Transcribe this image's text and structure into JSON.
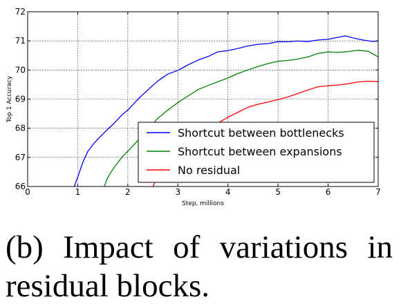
{
  "caption": "(b) Impact of variations in residual blocks.",
  "chart_data": {
    "type": "line",
    "xlabel": "Step, millions",
    "ylabel": "Top 1 Accuracy",
    "xlim": [
      0,
      7
    ],
    "ylim": [
      66,
      72
    ],
    "xticks": [
      0,
      1,
      2,
      3,
      4,
      5,
      6,
      7
    ],
    "yticks": [
      66,
      67,
      68,
      69,
      70,
      71,
      72
    ],
    "grid": true,
    "legend_position": "lower-right",
    "series": [
      {
        "name": "Shortcut between bottlenecks",
        "color": "#0000ff",
        "x": [
          0.93,
          1.0,
          1.1,
          1.2,
          1.3,
          1.4,
          1.5,
          1.6,
          1.7,
          1.8,
          1.9,
          2.0,
          2.2,
          2.4,
          2.6,
          2.8,
          3.0,
          3.2,
          3.4,
          3.6,
          3.8,
          4.0,
          4.2,
          4.4,
          4.6,
          4.8,
          5.0,
          5.2,
          5.4,
          5.6,
          5.8,
          6.0,
          6.2,
          6.35,
          6.5,
          6.7,
          6.9,
          7.0
        ],
        "y": [
          66.0,
          66.3,
          66.8,
          67.2,
          67.45,
          67.65,
          67.8,
          67.95,
          68.1,
          68.3,
          68.5,
          68.65,
          69.0,
          69.3,
          69.6,
          69.85,
          70.0,
          70.2,
          70.35,
          70.45,
          70.6,
          70.65,
          70.75,
          70.85,
          70.9,
          70.9,
          70.95,
          70.95,
          71.0,
          71.0,
          71.05,
          71.05,
          71.1,
          71.15,
          71.1,
          71.05,
          71.0,
          71.0
        ]
      },
      {
        "name": "Shortcut between expansions",
        "color": "#008000",
        "x": [
          1.53,
          1.6,
          1.7,
          1.8,
          1.9,
          2.0,
          2.2,
          2.4,
          2.6,
          2.8,
          3.0,
          3.2,
          3.4,
          3.6,
          3.8,
          4.0,
          4.2,
          4.4,
          4.6,
          4.8,
          5.0,
          5.2,
          5.4,
          5.6,
          5.8,
          6.0,
          6.2,
          6.4,
          6.6,
          6.8,
          7.0
        ],
        "y": [
          66.0,
          66.3,
          66.6,
          66.85,
          67.05,
          67.2,
          67.55,
          67.95,
          68.35,
          68.65,
          68.9,
          69.1,
          69.3,
          69.45,
          69.6,
          69.75,
          69.9,
          70.0,
          70.1,
          70.2,
          70.3,
          70.35,
          70.4,
          70.45,
          70.55,
          70.6,
          70.6,
          70.65,
          70.7,
          70.65,
          70.45
        ]
      },
      {
        "name": "No residual",
        "color": "#ff0000",
        "x": [
          2.5,
          2.6,
          2.8,
          3.0,
          3.2,
          3.4,
          3.6,
          3.8,
          4.0,
          4.2,
          4.4,
          4.6,
          4.8,
          5.0,
          5.2,
          5.4,
          5.6,
          5.8,
          6.0,
          6.2,
          6.4,
          6.6,
          6.8,
          7.0
        ],
        "y": [
          66.0,
          66.35,
          66.7,
          67.05,
          67.35,
          67.65,
          67.95,
          68.2,
          68.4,
          68.55,
          68.7,
          68.8,
          68.9,
          69.0,
          69.1,
          69.2,
          69.3,
          69.4,
          69.45,
          69.5,
          69.55,
          69.6,
          69.6,
          69.6
        ]
      }
    ]
  }
}
